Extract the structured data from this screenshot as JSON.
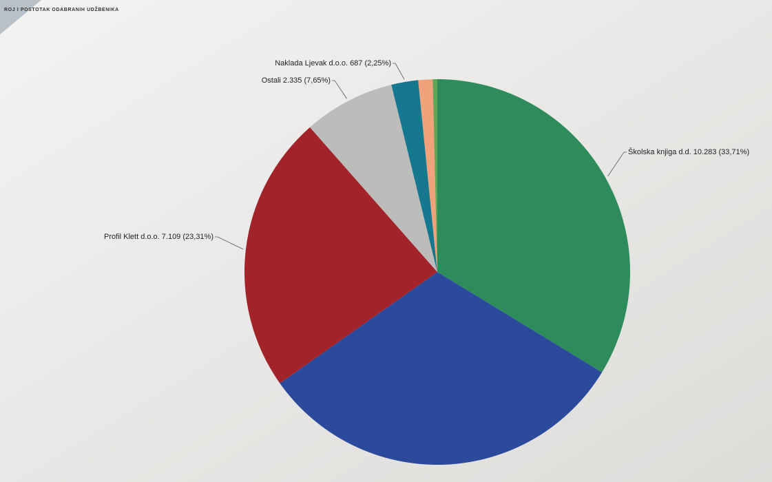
{
  "header": {
    "title": "ROJ I POSTOTAK ODABRANIH UDŽBENIKA"
  },
  "chart_data": {
    "type": "pie",
    "categories": [
      "Školska knjiga d.d. 10.283 (33,71%)",
      null,
      "Profil Klett d.o.o. 7.109 (23,31%)",
      "Ostali 2.335 (7,65%)",
      "Naklada Ljevak d.o.o. 687 (2,25%)",
      null,
      null
    ],
    "values": [
      10283,
      9609,
      7109,
      2335,
      687,
      366,
      116
    ],
    "colors": [
      "#2e8b5a",
      "#2b4a9c",
      "#a3232a",
      "#bcbcbb",
      "#16788f",
      "#f2a27a",
      "#5fa55a"
    ]
  }
}
